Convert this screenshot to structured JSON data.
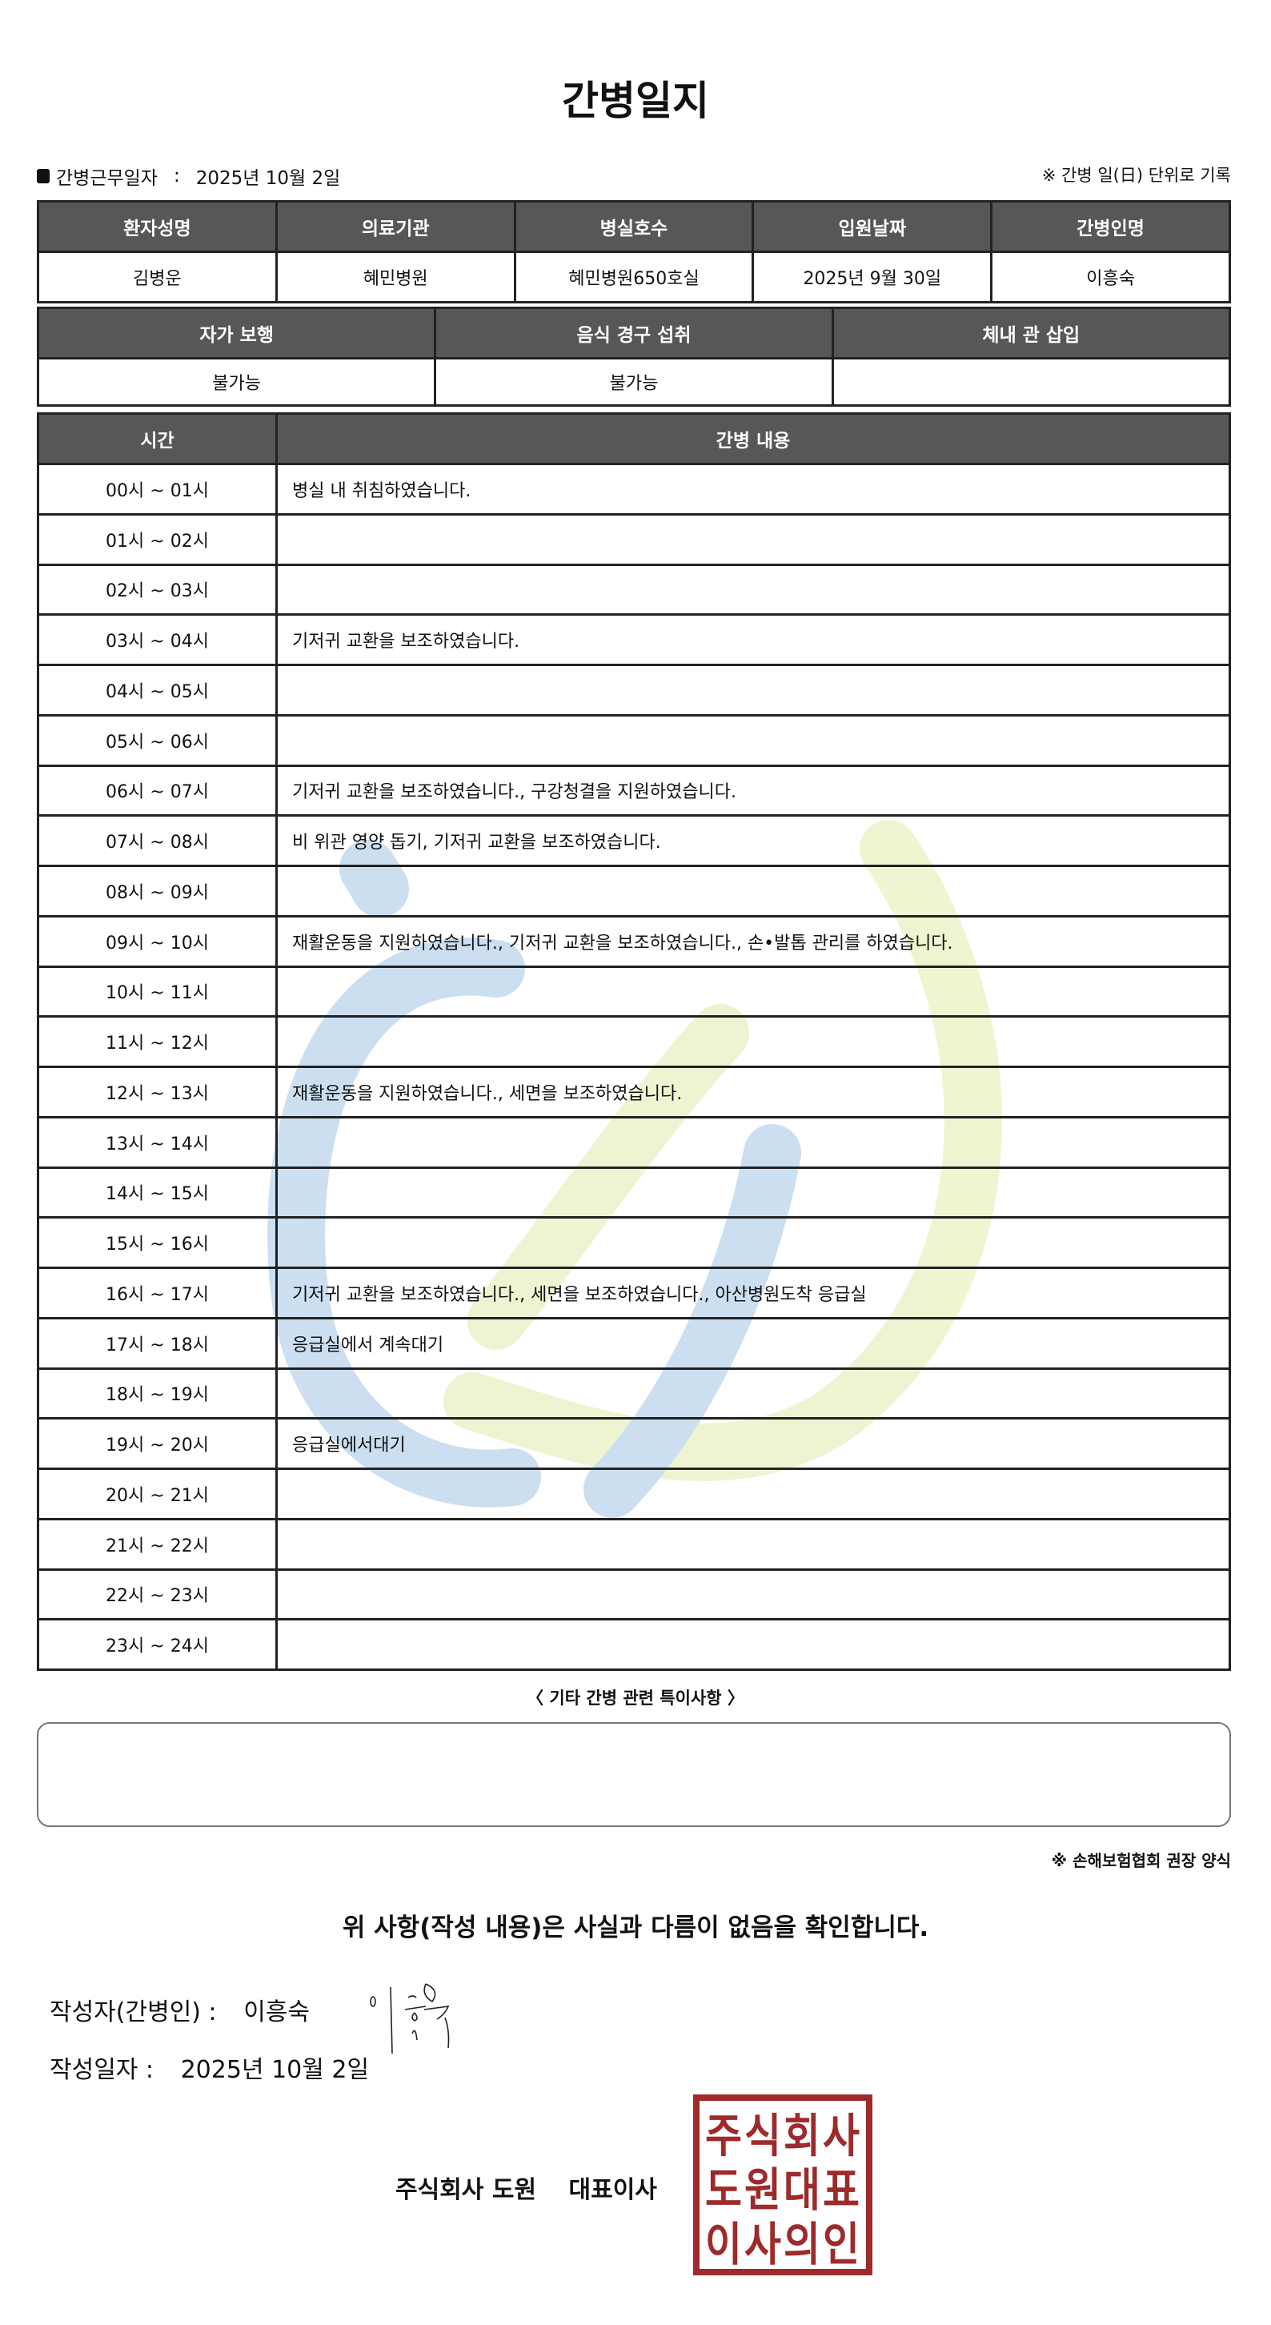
{
  "title": "간병일지",
  "info": {
    "work_date_label": "간병근무일자",
    "separator": ":",
    "work_date": "2025년 10월 2일",
    "unit_note": "※ 간병 일(日) 단위로 기록"
  },
  "patient_table": {
    "headers": [
      "환자성명",
      "의료기관",
      "병실호수",
      "입원날짜",
      "간병인명"
    ],
    "values": [
      "김병운",
      "혜민병원",
      "혜민병원650호실",
      "2025년 9월 30일",
      "이흥숙"
    ]
  },
  "status_table": {
    "headers": [
      "자가 보행",
      "음식 경구 섭취",
      "체내 관 삽입"
    ],
    "values": [
      "불가능",
      "불가능",
      ""
    ]
  },
  "care_table": {
    "headers": [
      "시간",
      "간병 내용"
    ],
    "rows": [
      {
        "time": "00시 ~ 01시",
        "content": "병실 내 취침하였습니다."
      },
      {
        "time": "01시 ~ 02시",
        "content": ""
      },
      {
        "time": "02시 ~ 03시",
        "content": ""
      },
      {
        "time": "03시 ~ 04시",
        "content": "기저귀 교환을 보조하였습니다."
      },
      {
        "time": "04시 ~ 05시",
        "content": ""
      },
      {
        "time": "05시 ~ 06시",
        "content": ""
      },
      {
        "time": "06시 ~ 07시",
        "content": "기저귀 교환을 보조하였습니다., 구강청결을 지원하였습니다."
      },
      {
        "time": "07시 ~ 08시",
        "content": "비 위관 영양 돕기, 기저귀 교환을 보조하였습니다."
      },
      {
        "time": "08시 ~ 09시",
        "content": ""
      },
      {
        "time": "09시 ~ 10시",
        "content": "재활운동을 지원하였습니다., 기저귀 교환을 보조하였습니다., 손•발톱 관리를 하였습니다."
      },
      {
        "time": "10시 ~ 11시",
        "content": ""
      },
      {
        "time": "11시 ~ 12시",
        "content": ""
      },
      {
        "time": "12시 ~ 13시",
        "content": "재활운동을 지원하였습니다., 세면을 보조하였습니다."
      },
      {
        "time": "13시 ~ 14시",
        "content": ""
      },
      {
        "time": "14시 ~ 15시",
        "content": ""
      },
      {
        "time": "15시 ~ 16시",
        "content": ""
      },
      {
        "time": "16시 ~ 17시",
        "content": "기저귀 교환을 보조하였습니다., 세면을 보조하였습니다., 아산병원도착 응급실"
      },
      {
        "time": "17시 ~ 18시",
        "content": "응급실에서 계속대기"
      },
      {
        "time": "18시 ~ 19시",
        "content": ""
      },
      {
        "time": "19시 ~ 20시",
        "content": "응급실에서대기"
      },
      {
        "time": "20시 ~ 21시",
        "content": ""
      },
      {
        "time": "21시 ~ 22시",
        "content": ""
      },
      {
        "time": "22시 ~ 23시",
        "content": ""
      },
      {
        "time": "23시 ~ 24시",
        "content": ""
      }
    ]
  },
  "notes": {
    "label": "〈 기타 간병 관련 특이사항 〉",
    "value": ""
  },
  "form_note": "※ 손해보험협회 권장 양식",
  "confirmation": "위 사항(작성 내용)은 사실과 다름이 없음을 확인합니다.",
  "writer": {
    "label": "작성자(간병인) :",
    "name": "이흥숙"
  },
  "written_date": {
    "label": "작성일자 :",
    "value": "2025년 10월 2일"
  },
  "company": {
    "name": "주식회사 도원",
    "title": "대표이사"
  },
  "stamp": {
    "text": [
      "주식회사",
      "도원대표",
      "이사의인"
    ],
    "color": "#9e2a2b"
  },
  "colors": {
    "header_bg": "#575757",
    "watermark_blue": "#c9def0",
    "watermark_green": "#eef3cf"
  }
}
